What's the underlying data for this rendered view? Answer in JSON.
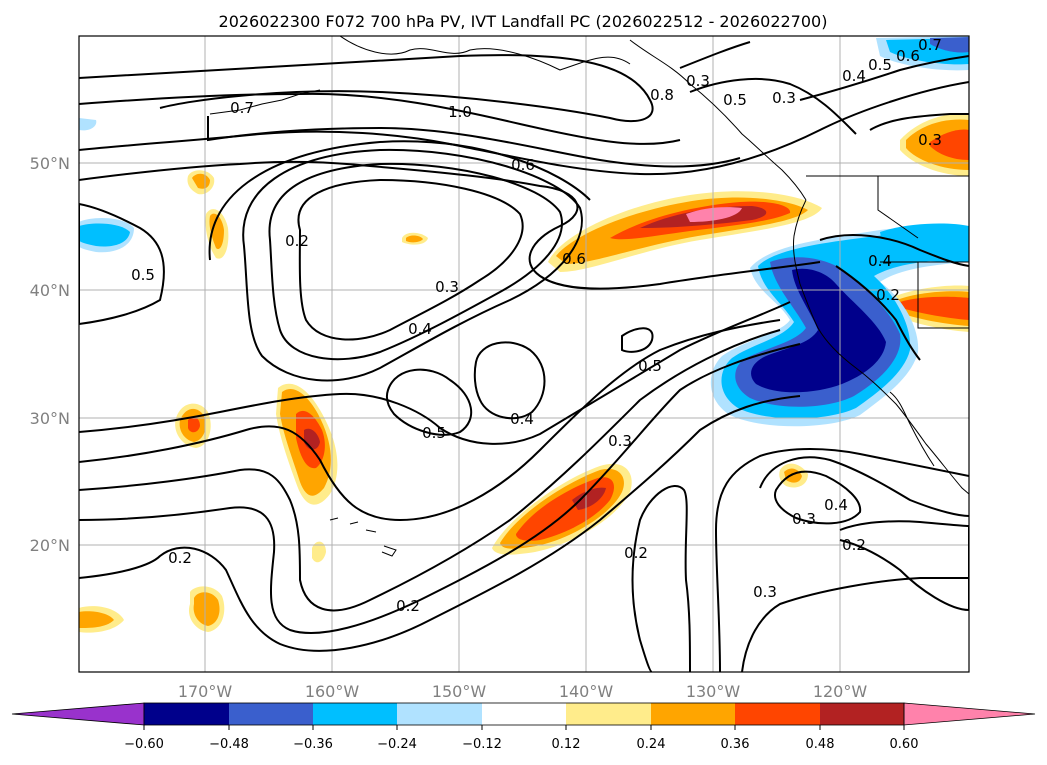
{
  "chart_data": {
    "type": "contour-map",
    "title": "2026022300 F072 700 hPa PV, IVT Landfall PC (2026022512 - 2026022700)",
    "x_ticks": [
      "170°W",
      "160°W",
      "150°W",
      "140°W",
      "130°W",
      "120°W"
    ],
    "y_ticks": [
      "50°N",
      "40°N",
      "30°N",
      "20°N"
    ],
    "colorbar": {
      "ticks": [
        "−0.60",
        "−0.48",
        "−0.36",
        "−0.24",
        "−0.12",
        "0.12",
        "0.24",
        "0.36",
        "0.48",
        "0.60"
      ],
      "colors": [
        "#9932cc",
        "#00008b",
        "#3a5fcd",
        "#00bfff",
        "#b0e2ff",
        "#ffffff",
        "#ffec8b",
        "#ffa500",
        "#ff4500",
        "#b22222",
        "#ff82ab"
      ]
    },
    "contour_labels": [
      "0.7",
      "1.0",
      "0.6",
      "0.8",
      "0.5",
      "0.3",
      "0.5",
      "0.6",
      "0.4",
      "0.3",
      "0.2",
      "0.5",
      "0.3",
      "0.4",
      "0.6",
      "0.4",
      "0.2",
      "0.5",
      "0.5",
      "0.4",
      "0.3",
      "0.2",
      "0.2",
      "0.2",
      "0.3",
      "0.4",
      "0.3",
      "0.2",
      "0.3",
      "0.7"
    ],
    "colors": {
      "land": "#ffffff",
      "frame": "#000000",
      "grid": "#b0b0b0"
    }
  }
}
